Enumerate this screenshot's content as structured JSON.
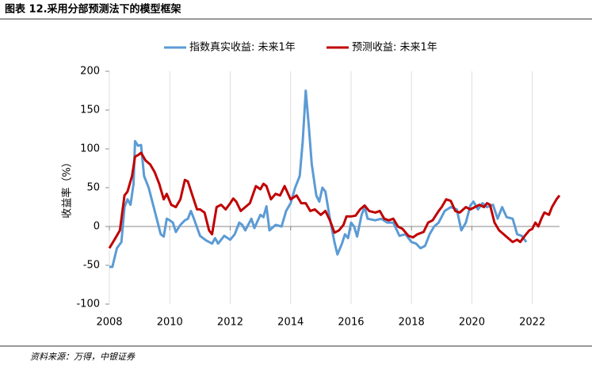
{
  "chart_data": {
    "type": "line",
    "title": "图表 12.采用分部预测法下的模型框架",
    "ylabel": "收益率（%）",
    "source": "资料来源：万得，中银证券",
    "xlim": [
      2008,
      2022.9
    ],
    "xticks": [
      2008,
      2010,
      2012,
      2014,
      2016,
      2018,
      2020,
      2022
    ],
    "ylim": [
      -100,
      200
    ],
    "yticks": [
      -100,
      -50,
      0,
      50,
      100,
      150,
      200
    ],
    "grid": "x",
    "legend": "top",
    "series": [
      {
        "name": "指数真实收益: 未来1年",
        "color": "#5b9bd5",
        "x": [
          2008.0,
          2008.1,
          2008.25,
          2008.4,
          2008.5,
          2008.6,
          2008.7,
          2008.8,
          2008.85,
          2008.95,
          2009.05,
          2009.15,
          2009.3,
          2009.5,
          2009.7,
          2009.8,
          2009.9,
          2010.0,
          2010.1,
          2010.2,
          2010.35,
          2010.5,
          2010.6,
          2010.7,
          2010.8,
          2011.0,
          2011.2,
          2011.4,
          2011.5,
          2011.6,
          2011.8,
          2012.0,
          2012.15,
          2012.3,
          2012.4,
          2012.5,
          2012.7,
          2012.8,
          2013.0,
          2013.1,
          2013.2,
          2013.3,
          2013.5,
          2013.7,
          2013.85,
          2014.0,
          2014.15,
          2014.3,
          2014.4,
          2014.5,
          2014.6,
          2014.7,
          2014.85,
          2014.95,
          2015.05,
          2015.15,
          2015.3,
          2015.45,
          2015.55,
          2015.7,
          2015.8,
          2015.9,
          2016.0,
          2016.1,
          2016.2,
          2016.35,
          2016.45,
          2016.55,
          2016.8,
          2017.0,
          2017.2,
          2017.4,
          2017.6,
          2017.8,
          2018.0,
          2018.15,
          2018.3,
          2018.45,
          2018.6,
          2018.75,
          2018.9,
          2019.1,
          2019.3,
          2019.5,
          2019.65,
          2019.8,
          2019.95,
          2020.05,
          2020.2,
          2020.35,
          2020.5,
          2020.7,
          2020.85,
          2021.0,
          2021.15,
          2021.35,
          2021.5,
          2021.65,
          2021.8
        ],
        "values": [
          -52,
          -52,
          -28,
          -20,
          25,
          35,
          28,
          55,
          110,
          104,
          105,
          65,
          50,
          20,
          -10,
          -13,
          10,
          8,
          5,
          -7,
          2,
          8,
          10,
          20,
          10,
          -12,
          -18,
          -22,
          -15,
          -22,
          -12,
          -17,
          -10,
          5,
          2,
          -5,
          10,
          -2,
          15,
          12,
          26,
          -5,
          2,
          0,
          20,
          30,
          50,
          65,
          110,
          175,
          130,
          80,
          40,
          32,
          50,
          45,
          10,
          -20,
          -36,
          -22,
          -10,
          -15,
          5,
          0,
          -13,
          15,
          25,
          10,
          8,
          10,
          5,
          5,
          -12,
          -10,
          -20,
          -22,
          -28,
          -25,
          -10,
          0,
          5,
          20,
          25,
          22,
          -5,
          5,
          27,
          32,
          22,
          30,
          25,
          28,
          10,
          25,
          12,
          10,
          -10,
          -12,
          -20
        ]
      },
      {
        "name": "预测收益: 未来1年",
        "color": "#c00000",
        "x": [
          2008.0,
          2008.2,
          2008.35,
          2008.5,
          2008.6,
          2008.75,
          2008.85,
          2008.95,
          2009.05,
          2009.2,
          2009.35,
          2009.5,
          2009.65,
          2009.8,
          2009.9,
          2010.05,
          2010.2,
          2010.35,
          2010.5,
          2010.6,
          2010.75,
          2010.9,
          2011.0,
          2011.15,
          2011.3,
          2011.4,
          2011.55,
          2011.7,
          2011.85,
          2012.0,
          2012.1,
          2012.2,
          2012.35,
          2012.5,
          2012.65,
          2012.85,
          2013.0,
          2013.1,
          2013.2,
          2013.35,
          2013.5,
          2013.65,
          2013.8,
          2014.0,
          2014.2,
          2014.35,
          2014.5,
          2014.65,
          2014.8,
          2015.0,
          2015.15,
          2015.3,
          2015.45,
          2015.6,
          2015.75,
          2015.85,
          2016.0,
          2016.15,
          2016.3,
          2016.45,
          2016.6,
          2016.8,
          2016.95,
          2017.1,
          2017.25,
          2017.4,
          2017.55,
          2017.7,
          2017.9,
          2018.05,
          2018.2,
          2018.4,
          2018.55,
          2018.7,
          2018.9,
          2019.0,
          2019.15,
          2019.3,
          2019.45,
          2019.6,
          2019.8,
          2019.95,
          2020.1,
          2020.25,
          2020.4,
          2020.5,
          2020.6,
          2020.75,
          2020.9,
          2021.05,
          2021.2,
          2021.35,
          2021.5,
          2021.6,
          2021.75,
          2021.9,
          2022.0,
          2022.1,
          2022.2,
          2022.3,
          2022.4,
          2022.55,
          2022.65,
          2022.8,
          2022.9
        ],
        "values": [
          -28,
          -15,
          -5,
          40,
          45,
          65,
          90,
          92,
          95,
          85,
          80,
          70,
          55,
          35,
          42,
          28,
          25,
          35,
          60,
          58,
          40,
          22,
          22,
          18,
          -5,
          -10,
          25,
          28,
          22,
          30,
          36,
          32,
          20,
          25,
          30,
          52,
          48,
          55,
          52,
          35,
          42,
          40,
          52,
          35,
          40,
          30,
          30,
          20,
          22,
          15,
          20,
          8,
          -8,
          -5,
          2,
          13,
          13,
          14,
          22,
          27,
          20,
          18,
          20,
          10,
          8,
          10,
          0,
          -3,
          -12,
          -14,
          -10,
          -7,
          5,
          8,
          20,
          25,
          35,
          33,
          20,
          18,
          25,
          22,
          25,
          28,
          25,
          30,
          28,
          5,
          -5,
          -10,
          -15,
          -20,
          -17,
          -20,
          -12,
          -5,
          -3,
          5,
          0,
          10,
          18,
          15,
          25,
          35,
          40
        ]
      }
    ]
  }
}
